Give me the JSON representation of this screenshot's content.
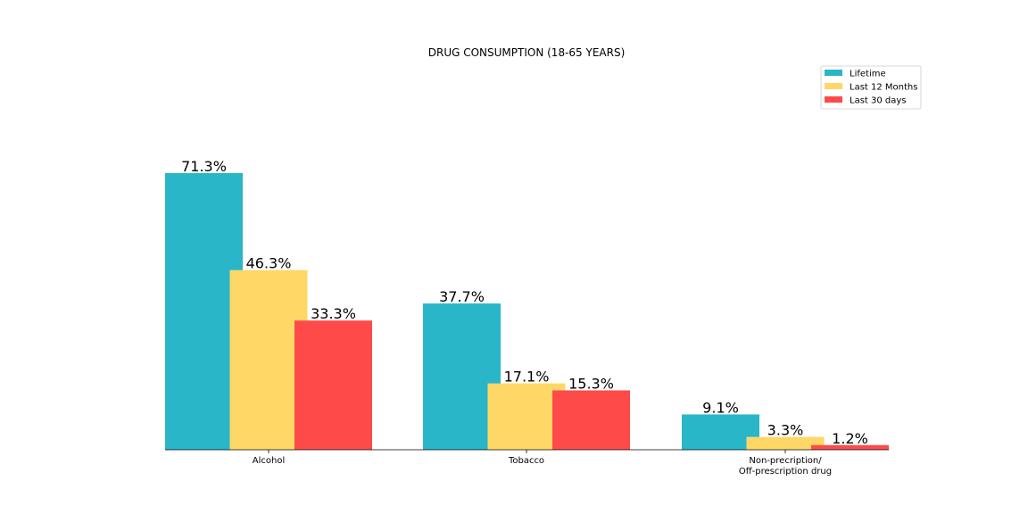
{
  "chart_data": {
    "type": "bar",
    "title": "DRUG CONSUMPTION (18-65 YEARS)",
    "categories": [
      [
        "Alcohol"
      ],
      [
        "Tobacco"
      ],
      [
        "Non-precription/",
        "Off-prescription drug"
      ]
    ],
    "series": [
      {
        "name": "Lifetime",
        "values": [
          71.3,
          37.7,
          9.1
        ],
        "labels": [
          "71.3%",
          "37.7%",
          "9.1%"
        ],
        "color": "#2ab6c9"
      },
      {
        "name": "Last 12 Months",
        "values": [
          46.3,
          17.1,
          3.3
        ],
        "labels": [
          "46.3%",
          "17.1%",
          "3.3%"
        ],
        "color": "#fed766"
      },
      {
        "name": "Last 30 days",
        "values": [
          33.3,
          15.3,
          1.2
        ],
        "labels": [
          "33.3%",
          "15.3%",
          "1.2%"
        ],
        "color": "#fe4a49"
      }
    ],
    "legend_position": "top-right",
    "grid": false,
    "y_axis_visible": false
  }
}
